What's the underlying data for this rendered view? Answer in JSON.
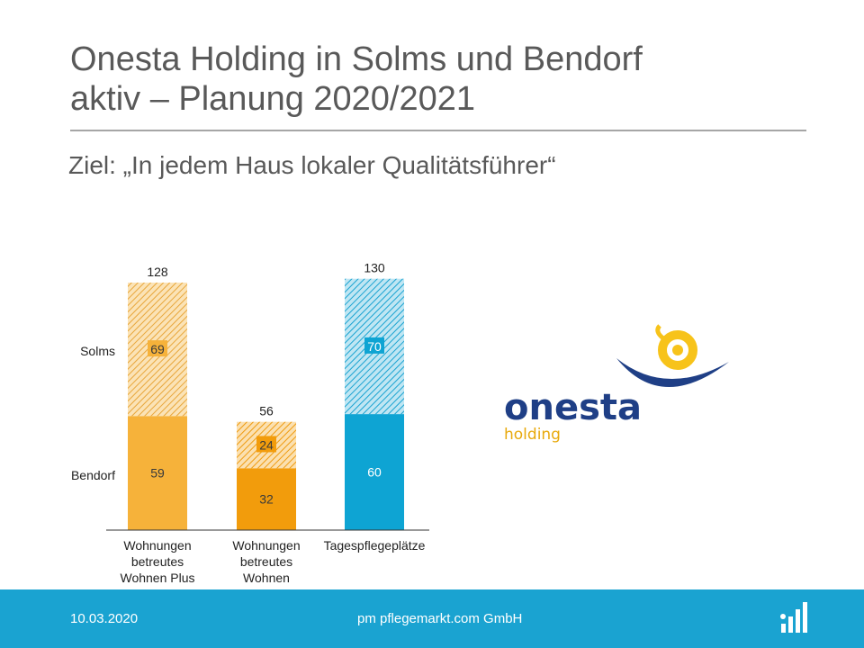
{
  "slide": {
    "title_line1": "Onesta Holding in Solms und Bendorf",
    "title_line2": "aktiv – Planung 2020/2021",
    "subtitle": "Ziel: „In jedem Haus lokaler Qualitätsführer“"
  },
  "chart_data": {
    "type": "bar",
    "stacked": true,
    "categories": [
      [
        "Wohnungen",
        "betreutes",
        "Wohnen Plus"
      ],
      [
        "Wohnungen",
        "betreutes",
        "Wohnen"
      ],
      [
        "Tagespflegeplätze"
      ]
    ],
    "series": [
      {
        "name": "Bendorf",
        "values": [
          59,
          32,
          60
        ]
      },
      {
        "name": "Solms",
        "values": [
          69,
          24,
          70
        ]
      }
    ],
    "totals": [
      128,
      56,
      130
    ],
    "ylim": [
      0,
      140
    ],
    "grid": false,
    "legend_placement": "left",
    "colors": {
      "cat0": "#f6b23a",
      "cat1": "#f29c0c",
      "cat2": "#0ea4d3",
      "axis": "#333333"
    }
  },
  "logo": {
    "word": "onesta",
    "sub": "holding",
    "colors": {
      "navy": "#1f3f86",
      "yellow": "#f7c31a",
      "gold": "#e8a90c"
    }
  },
  "footer": {
    "date": "10.03.2020",
    "company": "pm pflegemarkt.com GmbH",
    "background": "#1aa3d1"
  }
}
